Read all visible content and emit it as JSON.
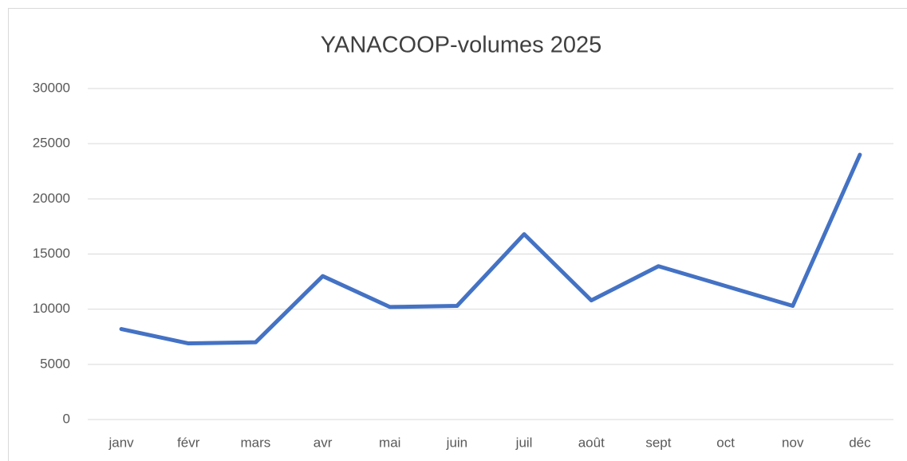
{
  "chart_data": {
    "type": "line",
    "title": "YANACOOP-volumes 2025",
    "categories": [
      "janv",
      "févr",
      "mars",
      "avr",
      "mai",
      "juin",
      "juil",
      "août",
      "sept",
      "oct",
      "nov",
      "déc"
    ],
    "series": [
      {
        "name": "volumes",
        "color": "#4472c4",
        "values": [
          8200,
          6900,
          7000,
          13000,
          10200,
          10300,
          16800,
          10800,
          13900,
          12100,
          10300,
          24000
        ]
      }
    ],
    "ylim": [
      0,
      30000
    ],
    "yticks": [
      0,
      5000,
      10000,
      15000,
      20000,
      25000,
      30000
    ],
    "grid": true
  }
}
